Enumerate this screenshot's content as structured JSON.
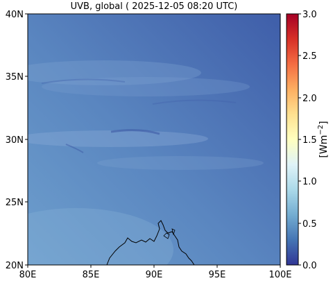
{
  "map": {
    "title": "UVB, global ( 2025-12-05 08:20 UTC)",
    "x_ticks": [
      "80E",
      "85E",
      "90E",
      "95E",
      "100E"
    ],
    "y_ticks": [
      "40N",
      "35N",
      "30N",
      "25N",
      "20N"
    ],
    "extent": {
      "lon": [
        80,
        100
      ],
      "lat": [
        20,
        40
      ]
    }
  },
  "colorbar": {
    "label": "[Wm",
    "label_exp": "−2",
    "label_close": "]",
    "ticks": [
      "3.0",
      "2.5",
      "2.0",
      "1.5",
      "1.0",
      "0.5",
      "0.0"
    ],
    "range": [
      0.0,
      3.0
    ],
    "colormap": "RdYlBu_r",
    "colors": [
      "#313695",
      "#4575b4",
      "#74add1",
      "#abd9e9",
      "#e0f3f8",
      "#ffffbf",
      "#fee090",
      "#fdae61",
      "#f46d43",
      "#d73027",
      "#a50026"
    ]
  }
}
